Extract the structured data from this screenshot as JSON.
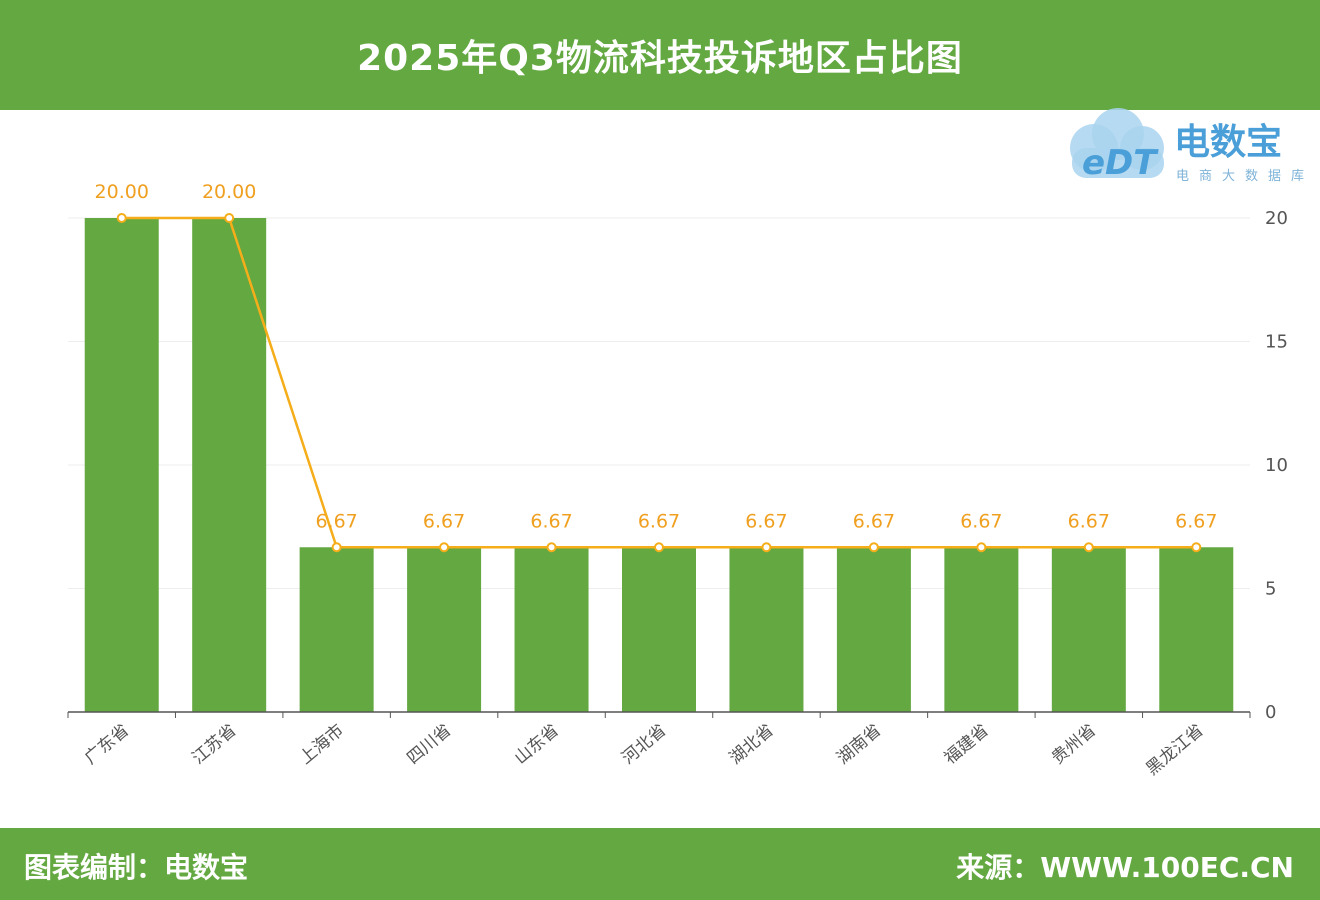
{
  "header": {
    "title": "2025年Q3物流科技投诉地区占比图"
  },
  "footer": {
    "left": "图表编制：电数宝",
    "right": "来源：WWW.100EC.CN"
  },
  "logo": {
    "brand": "电数宝",
    "sub": "电商大数据库",
    "mark": "eDT"
  },
  "colors": {
    "bar": "#64a842",
    "line": "#f5ae1a",
    "label": "#f0a020",
    "header": "#64a842",
    "axis": "#555555",
    "grid": "#eeeeee"
  },
  "chart_data": {
    "type": "bar",
    "categories": [
      "广东省",
      "江苏省",
      "上海市",
      "四川省",
      "山东省",
      "河北省",
      "湖北省",
      "湖南省",
      "福建省",
      "贵州省",
      "黑龙江省"
    ],
    "series": [
      {
        "type": "bar",
        "values": [
          20.0,
          20.0,
          6.67,
          6.67,
          6.67,
          6.67,
          6.67,
          6.67,
          6.67,
          6.67,
          6.67
        ]
      },
      {
        "type": "line",
        "values": [
          20.0,
          20.0,
          6.67,
          6.67,
          6.67,
          6.67,
          6.67,
          6.67,
          6.67,
          6.67,
          6.67
        ]
      }
    ],
    "data_labels": [
      "20.00",
      "20.00",
      "6.67",
      "6.67",
      "6.67",
      "6.67",
      "6.67",
      "6.67",
      "6.67",
      "6.67",
      "6.67"
    ],
    "yticks": [
      "0",
      "5",
      "10",
      "15",
      "20"
    ],
    "ylim": [
      0,
      20
    ],
    "y_axis_position": "right",
    "grid": true
  }
}
